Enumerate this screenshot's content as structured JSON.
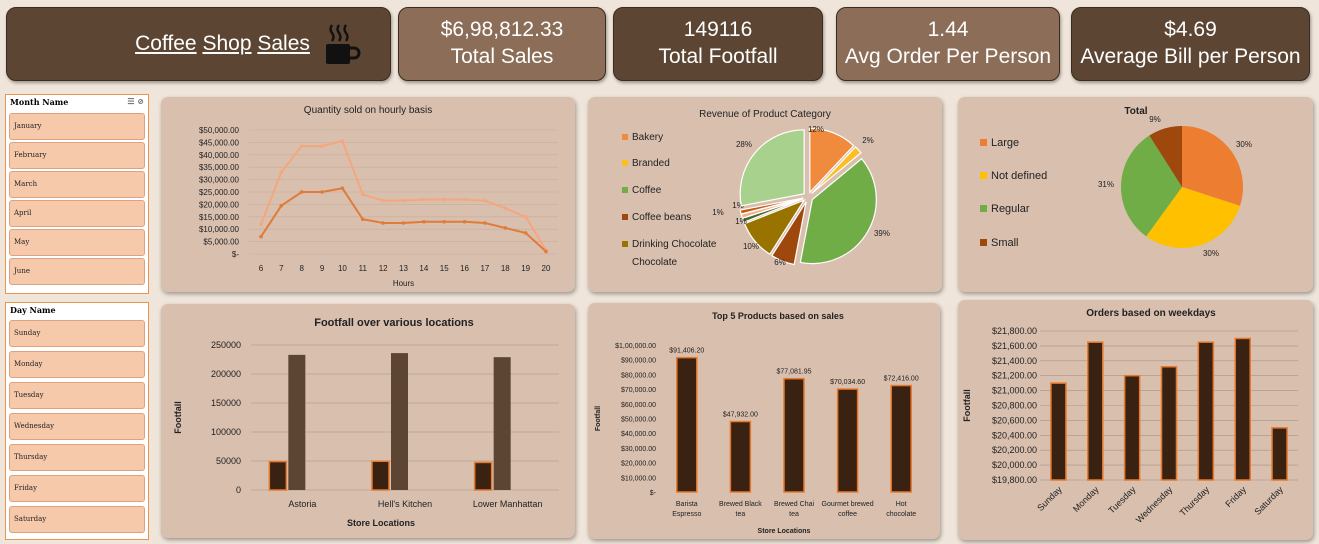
{
  "header": {
    "title_words": [
      "Coffee",
      "Shop",
      "Sales"
    ],
    "icon": "coffee-cup-icon"
  },
  "kpis": [
    {
      "value": "$6,98,812.33",
      "label": "Total Sales"
    },
    {
      "value": "149116",
      "label": "Total Footfall"
    },
    {
      "value": "1.44",
      "label": "Avg Order Per Person"
    },
    {
      "value": "$4.69",
      "label": "Average Bill per Person"
    }
  ],
  "slicer_month": {
    "title": "Month Name",
    "items": [
      "January",
      "February",
      "March",
      "April",
      "May",
      "June"
    ]
  },
  "slicer_day": {
    "title": "Day Name",
    "items": [
      "Sunday",
      "Monday",
      "Tuesday",
      "Wednesday",
      "Thursday",
      "Friday",
      "Saturday"
    ]
  },
  "colors": {
    "dark_brown": "#5c4633",
    "light_brown": "#8b6d58",
    "panel": "#d9bfae",
    "bar_dark": "#3a2212",
    "bar_edge": "#e8782a",
    "line_light": "#f4a77d",
    "line_dark": "#e07b39"
  },
  "chart_data": [
    {
      "type": "line",
      "title": "Quantity sold on hourly basis",
      "xlabel": "Hours",
      "ylabel": "",
      "x": [
        6,
        7,
        8,
        9,
        10,
        11,
        12,
        13,
        14,
        15,
        16,
        17,
        18,
        19,
        20
      ],
      "yticks": [
        "$-",
        "$5,000.00",
        "$10,000.00",
        "$15,000.00",
        "$20,000.00",
        "$25,000.00",
        "$30,000.00",
        "$35,000.00",
        "$40,000.00",
        "$45,000.00",
        "$50,000.00"
      ],
      "ylim": [
        0,
        50000
      ],
      "series": [
        {
          "values": [
            12000,
            33000,
            43500,
            43500,
            45500,
            24000,
            21500,
            21500,
            22000,
            22000,
            22000,
            21500,
            18500,
            15000,
            1500
          ]
        },
        {
          "values": [
            7000,
            19500,
            25000,
            25000,
            26500,
            14000,
            12500,
            12500,
            13000,
            13000,
            13000,
            12500,
            10500,
            8500,
            1000
          ]
        }
      ]
    },
    {
      "type": "pie",
      "title": "Revenue of Product Category",
      "legend": "left",
      "legend_labels": [
        "Bakery",
        "Branded",
        "Coffee",
        "Coffee beans",
        "Drinking Chocolate"
      ],
      "slices": [
        {
          "value": 12,
          "label": "12%",
          "color": "#f08a3c"
        },
        {
          "value": 2,
          "label": "2%",
          "color": "#fbbf24"
        },
        {
          "value": 39,
          "label": "39%",
          "color": "#70ad47"
        },
        {
          "value": 6,
          "label": "6%",
          "color": "#9e480e"
        },
        {
          "value": 10,
          "label": "10%",
          "color": "#997300"
        },
        {
          "value": 1,
          "label": "1%",
          "color": "#43682b"
        },
        {
          "value": 1,
          "label": "1%",
          "color": "#f4b183"
        },
        {
          "value": 1,
          "label": "1%",
          "color": "#c55a11"
        },
        {
          "value": 28,
          "label": "28%",
          "color": "#a9d18e"
        }
      ]
    },
    {
      "type": "pie",
      "title": "Total",
      "legend": "left",
      "slices": [
        {
          "name": "Large",
          "value": 30,
          "label": "30%",
          "color": "#ed7d31"
        },
        {
          "name": "Not defined",
          "value": 30,
          "label": "30%",
          "color": "#ffc000"
        },
        {
          "name": "Regular",
          "value": 31,
          "label": "31%",
          "color": "#70ad47"
        },
        {
          "name": "Small",
          "value": 9,
          "label": "9%",
          "color": "#9e480e"
        }
      ]
    },
    {
      "type": "bar",
      "title": "Footfall over various locations",
      "xlabel": "Store Locations",
      "ylabel": "Footfall",
      "categories": [
        "Astoria",
        "Hell's Kitchen",
        "Lower Manhattan"
      ],
      "yticks": [
        "0",
        "50000",
        "100000",
        "150000",
        "200000",
        "250000"
      ],
      "ylim": [
        0,
        250000
      ],
      "series": [
        {
          "values": [
            49000,
            49500,
            47500
          ]
        },
        {
          "values": [
            233000,
            236000,
            229000
          ]
        }
      ]
    },
    {
      "type": "bar",
      "title": "Top 5 Products based on sales",
      "xlabel": "Store Locations",
      "ylabel": "Footfall",
      "categories": [
        "Barista Espresso",
        "Brewed Black tea",
        "Brewed Chai tea",
        "Gourmet brewed coffee",
        "Hot chocolate"
      ],
      "values": [
        91406.2,
        47932.0,
        77081.95,
        70034.6,
        72416.0
      ],
      "data_labels": [
        "$91,406.20",
        "$47,932.00",
        "$77,081.95",
        "$70,034.60",
        "$72,416.00"
      ],
      "yticks": [
        "$-",
        "$10,000.00",
        "$20,000.00",
        "$30,000.00",
        "$40,000.00",
        "$50,000.00",
        "$60,000.00",
        "$70,000.00",
        "$80,000.00",
        "$90,000.00",
        "$1,00,000.00"
      ],
      "ylim": [
        0,
        100000
      ]
    },
    {
      "type": "bar",
      "title": "Orders based on weekdays",
      "ylabel": "Footfall",
      "categories": [
        "Sunday",
        "Monday",
        "Tuesday",
        "Wednesday",
        "Thursday",
        "Friday",
        "Saturday"
      ],
      "values": [
        21100,
        21650,
        21200,
        21320,
        21650,
        21700,
        20500
      ],
      "yticks": [
        "$19,800.00",
        "$20,000.00",
        "$20,200.00",
        "$20,400.00",
        "$20,600.00",
        "$20,800.00",
        "$21,000.00",
        "$21,200.00",
        "$21,400.00",
        "$21,600.00",
        "$21,800.00"
      ],
      "ylim": [
        19800,
        21800
      ]
    }
  ]
}
